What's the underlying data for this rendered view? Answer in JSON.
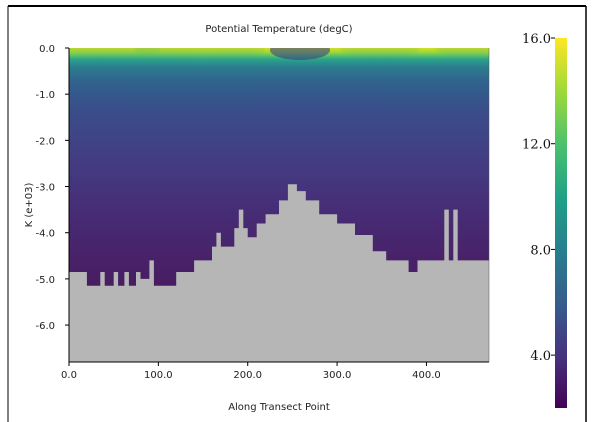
{
  "chart_data": {
    "type": "heatmap",
    "title": "Potential Temperature (degC)",
    "xlabel": "Along Transect Point",
    "ylabel": "K (e+03)",
    "xlim": [
      0,
      470
    ],
    "ylim": [
      -6.8,
      0
    ],
    "xticks": [
      "0.0",
      "100.0",
      "200.0",
      "300.0",
      "400.0"
    ],
    "xtick_values": [
      0,
      100,
      200,
      300,
      400
    ],
    "yticks": [
      "0.0",
      "-1.0",
      "-2.0",
      "-3.0",
      "-4.0",
      "-5.0",
      "-6.0"
    ],
    "ytick_values": [
      0,
      -1,
      -2,
      -3,
      -4,
      -5,
      -6
    ],
    "colorbar": {
      "colormap": "viridis",
      "range": [
        2.0,
        16.0
      ],
      "ticks": [
        "16.0",
        "12.0",
        "8.0",
        "4.0"
      ],
      "tick_values": [
        16.0,
        12.0,
        8.0,
        4.0
      ]
    },
    "bathymetry": {
      "description_color": "#b6b6b6",
      "points": [
        [
          0,
          -4.85
        ],
        [
          20,
          -4.85
        ],
        [
          20,
          -5.15
        ],
        [
          35,
          -5.15
        ],
        [
          35,
          -4.85
        ],
        [
          40,
          -4.85
        ],
        [
          40,
          -5.15
        ],
        [
          50,
          -5.15
        ],
        [
          50,
          -4.85
        ],
        [
          55,
          -4.85
        ],
        [
          55,
          -5.15
        ],
        [
          62,
          -5.15
        ],
        [
          62,
          -4.85
        ],
        [
          67,
          -4.85
        ],
        [
          67,
          -5.15
        ],
        [
          75,
          -5.15
        ],
        [
          75,
          -4.85
        ],
        [
          80,
          -4.85
        ],
        [
          80,
          -5.0
        ],
        [
          90,
          -5.0
        ],
        [
          90,
          -4.6
        ],
        [
          95,
          -4.6
        ],
        [
          95,
          -5.15
        ],
        [
          120,
          -5.15
        ],
        [
          120,
          -4.85
        ],
        [
          140,
          -4.85
        ],
        [
          140,
          -4.6
        ],
        [
          160,
          -4.6
        ],
        [
          160,
          -4.3
        ],
        [
          165,
          -4.3
        ],
        [
          165,
          -4.0
        ],
        [
          170,
          -4.0
        ],
        [
          170,
          -4.3
        ],
        [
          185,
          -4.3
        ],
        [
          185,
          -3.9
        ],
        [
          190,
          -3.9
        ],
        [
          190,
          -3.5
        ],
        [
          195,
          -3.5
        ],
        [
          195,
          -3.9
        ],
        [
          200,
          -3.9
        ],
        [
          200,
          -4.1
        ],
        [
          210,
          -4.1
        ],
        [
          210,
          -3.8
        ],
        [
          220,
          -3.8
        ],
        [
          220,
          -3.6
        ],
        [
          235,
          -3.6
        ],
        [
          235,
          -3.3
        ],
        [
          245,
          -3.3
        ],
        [
          245,
          -2.95
        ],
        [
          255,
          -2.95
        ],
        [
          255,
          -3.1
        ],
        [
          265,
          -3.1
        ],
        [
          265,
          -3.3
        ],
        [
          280,
          -3.3
        ],
        [
          280,
          -3.6
        ],
        [
          300,
          -3.6
        ],
        [
          300,
          -3.8
        ],
        [
          320,
          -3.8
        ],
        [
          320,
          -4.05
        ],
        [
          340,
          -4.05
        ],
        [
          340,
          -4.4
        ],
        [
          355,
          -4.4
        ],
        [
          355,
          -4.6
        ],
        [
          380,
          -4.6
        ],
        [
          380,
          -4.85
        ],
        [
          390,
          -4.85
        ],
        [
          390,
          -4.6
        ],
        [
          420,
          -4.6
        ],
        [
          420,
          -3.5
        ],
        [
          425,
          -3.5
        ],
        [
          425,
          -4.6
        ],
        [
          430,
          -4.6
        ],
        [
          430,
          -3.5
        ],
        [
          435,
          -3.5
        ],
        [
          435,
          -4.6
        ],
        [
          470,
          -4.6
        ]
      ]
    }
  }
}
